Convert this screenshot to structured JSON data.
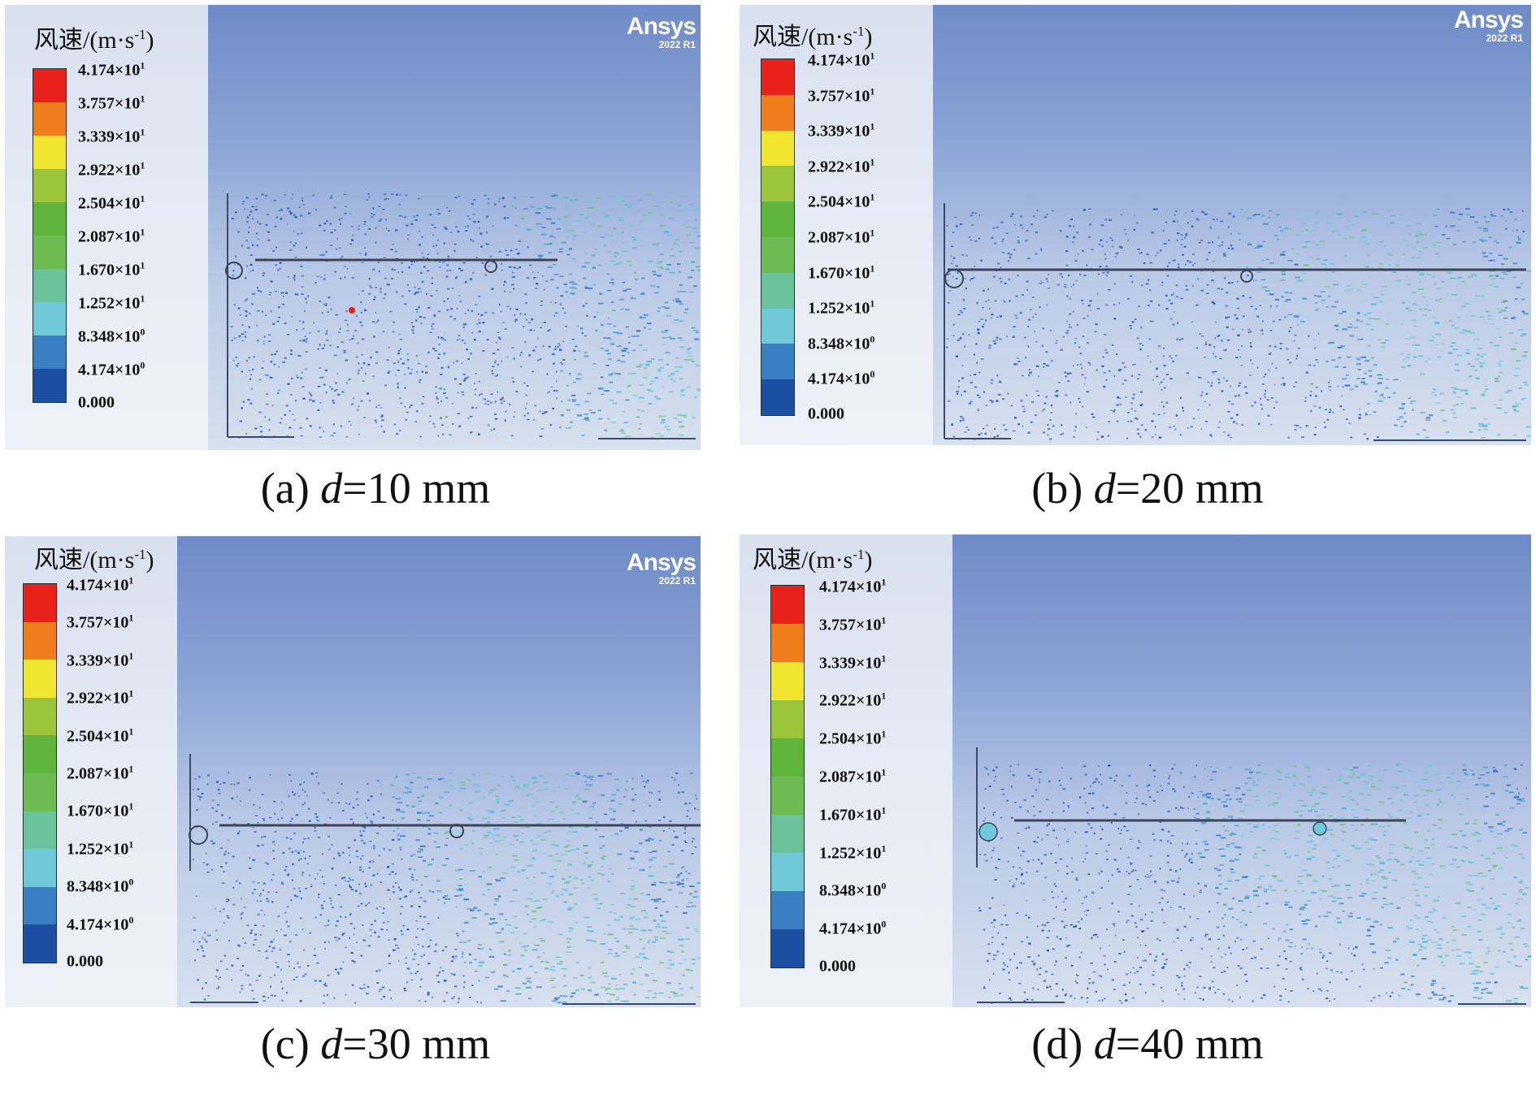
{
  "legend": {
    "title_text": "风速/(m·s",
    "title_sup": "-1",
    "title_close": ")",
    "ticks": [
      {
        "mant": "4.174×10",
        "exp": "1"
      },
      {
        "mant": "3.757×10",
        "exp": "1"
      },
      {
        "mant": "3.339×10",
        "exp": "1"
      },
      {
        "mant": "2.922×10",
        "exp": "1"
      },
      {
        "mant": "2.504×10",
        "exp": "1"
      },
      {
        "mant": "2.087×10",
        "exp": "1"
      },
      {
        "mant": "1.670×10",
        "exp": "1"
      },
      {
        "mant": "1.252×10",
        "exp": "1"
      },
      {
        "mant": "8.348×10",
        "exp": "0"
      },
      {
        "mant": "4.174×10",
        "exp": "0"
      },
      {
        "mant": "0.000",
        "exp": ""
      }
    ],
    "colors": [
      "#e8221b",
      "#f07d1b",
      "#f0e630",
      "#9cc43a",
      "#5fb43c",
      "#6dbb52",
      "#6ac39a",
      "#6fc9d9",
      "#3a7fc4",
      "#1c4ea3"
    ]
  },
  "watermark": {
    "brand": "Ansys",
    "version": "2022 R1"
  },
  "panels": [
    {
      "letter": "(a)",
      "var": "d",
      "rest": "=10 mm"
    },
    {
      "letter": "(b)",
      "var": "d",
      "rest": "=20 mm"
    },
    {
      "letter": "(c)",
      "var": "d",
      "rest": "=30 mm"
    },
    {
      "letter": "(d)",
      "var": "d",
      "rest": "=40 mm"
    }
  ]
}
